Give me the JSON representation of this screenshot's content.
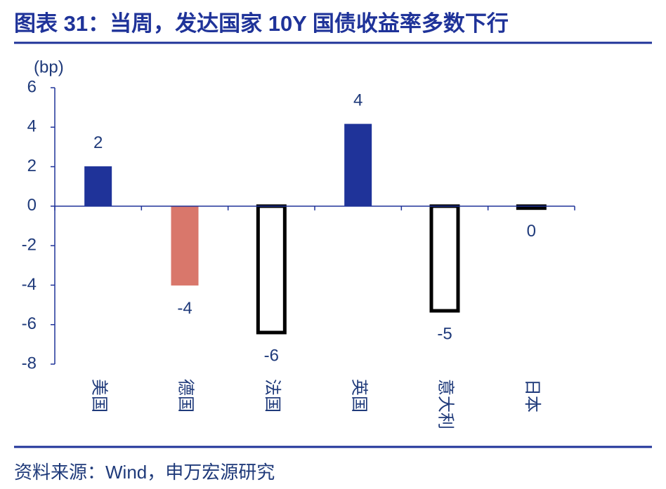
{
  "chart_data": {
    "type": "bar",
    "title": "图表 31：当周，发达国家 10Y 国债收益率多数下行",
    "y_label": "(bp)",
    "source": "资料来源：Wind，申万宏源研究",
    "categories": [
      "美国",
      "德国",
      "法国",
      "英国",
      "意大利",
      "日本"
    ],
    "values": [
      2,
      -4,
      -6.4,
      4.15,
      -5.3,
      -0.1
    ],
    "value_labels": [
      "2",
      "-4",
      "-6",
      "4",
      "-5",
      "0"
    ],
    "colors": [
      "#1f3399",
      "#d9776b",
      "#ffffff",
      "#1f3399",
      "#ffffff",
      "#ffffff"
    ],
    "edgecolors": [
      "#1f3399",
      "#d9776b",
      "#000000",
      "#1f3399",
      "#000000",
      "#000000"
    ],
    "ylim": [
      -8,
      6
    ],
    "yticks": [
      -8,
      -6,
      -4,
      -2,
      0,
      2,
      4,
      6
    ],
    "grid": false
  }
}
